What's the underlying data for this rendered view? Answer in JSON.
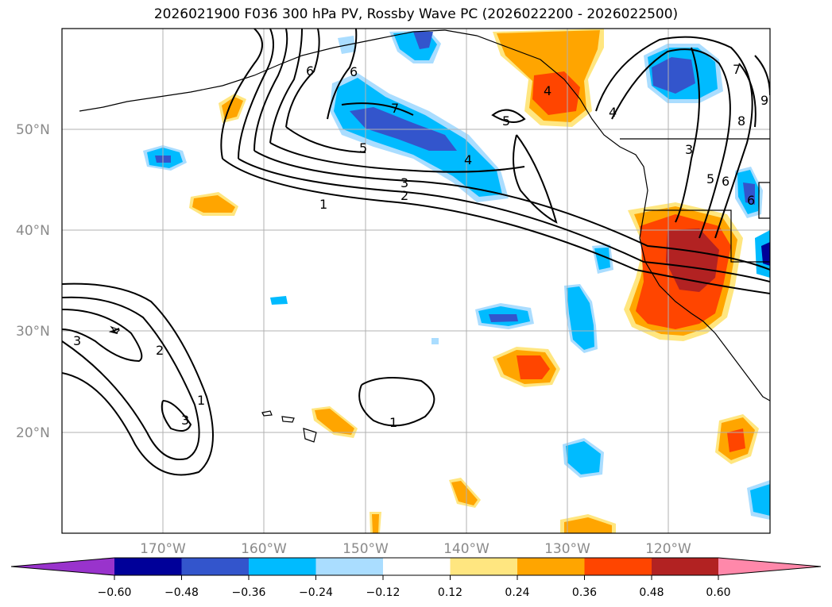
{
  "title": "2026021900 F036 300 hPa PV, Rossby Wave PC (2026022200 - 2026022500)",
  "map": {
    "lat_labels": [
      "50°N",
      "40°N",
      "30°N",
      "20°N"
    ],
    "lon_labels": [
      "170°W",
      "160°W",
      "150°W",
      "140°W",
      "130°W",
      "120°W"
    ],
    "lat_range": [
      10,
      60
    ],
    "lon_range": [
      -180,
      -110
    ]
  },
  "colorbar": {
    "ticks": [
      "−0.60",
      "−0.48",
      "−0.36",
      "−0.24",
      "−0.12",
      "0.12",
      "0.24",
      "0.36",
      "0.48",
      "0.60"
    ],
    "colors": [
      "#9933cc",
      "#000099",
      "#3355cc",
      "#00bbff",
      "#aaddff",
      "#ffffff",
      "#ffe680",
      "#ffa500",
      "#ff4500",
      "#b22222",
      "#ff88aa"
    ]
  },
  "contour_labels": [
    "6",
    "6",
    "7",
    "5",
    "5",
    "4",
    "3",
    "2",
    "1",
    "7",
    "8",
    "9",
    "3",
    "4",
    "5",
    "6",
    "6",
    "4",
    "3",
    "2",
    "3",
    "1",
    "1"
  ]
}
